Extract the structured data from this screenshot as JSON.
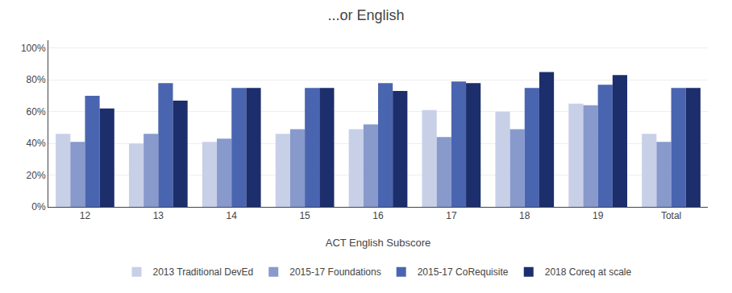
{
  "chart_data": {
    "type": "bar",
    "title": "...or English",
    "xlabel": "ACT English Subscore",
    "categories": [
      "12",
      "13",
      "14",
      "15",
      "16",
      "17",
      "18",
      "19",
      "Total"
    ],
    "series": [
      {
        "name": "2013 Traditional DevEd",
        "color": "#c8d0e8",
        "values": [
          0.46,
          0.4,
          0.41,
          0.46,
          0.49,
          0.61,
          0.6,
          0.65,
          0.46
        ]
      },
      {
        "name": "2015-17 Foundations",
        "color": "#8899cc",
        "values": [
          0.41,
          0.46,
          0.43,
          0.49,
          0.52,
          0.44,
          0.49,
          0.64,
          0.41
        ]
      },
      {
        "name": "2015-17 CoRequisite",
        "color": "#4a65b0",
        "values": [
          0.7,
          0.78,
          0.75,
          0.75,
          0.78,
          0.79,
          0.75,
          0.77,
          0.75
        ]
      },
      {
        "name": "2018 Coreq at scale",
        "color": "#1c2e6b",
        "values": [
          0.62,
          0.67,
          0.75,
          0.75,
          0.73,
          0.78,
          0.85,
          0.83,
          0.75
        ]
      }
    ],
    "ylim": [
      0,
      1.05
    ],
    "yticks": [
      {
        "value": 0.0,
        "label": "0%"
      },
      {
        "value": 0.2,
        "label": "20%"
      },
      {
        "value": 0.4,
        "label": "40%"
      },
      {
        "value": 0.6,
        "label": "60%"
      },
      {
        "value": 0.8,
        "label": "80%"
      },
      {
        "value": 1.0,
        "label": "100%"
      }
    ],
    "grid": true,
    "legend": "bottom"
  }
}
